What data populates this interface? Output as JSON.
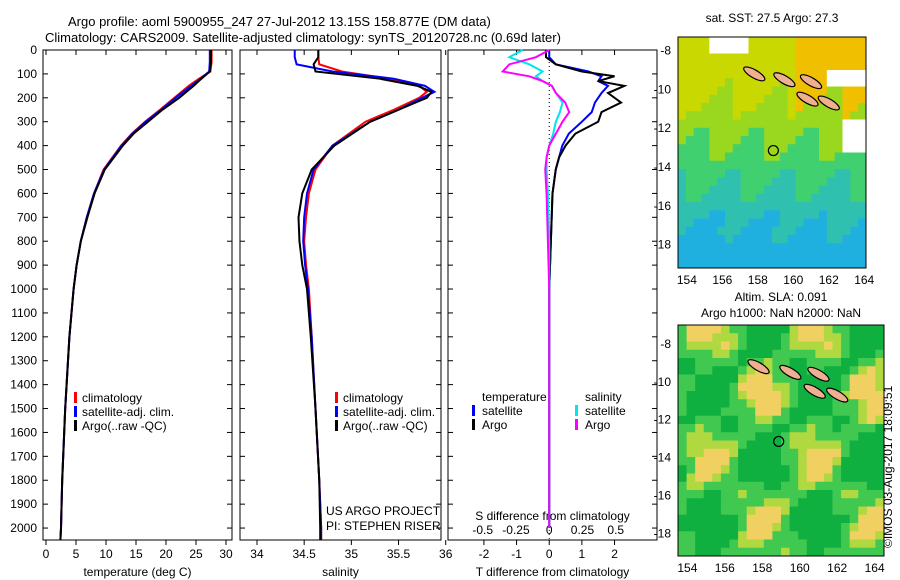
{
  "title_line1": "Argo profile: aoml 5900955_247 27-Jul-2012 13.15S 158.877E (DM data)",
  "title_line2": "Climatology: CARS2009. Satellite-adjusted climatology: synTS_20120728.nc (0.69d later)",
  "credit": "US ARGO PROJECT",
  "pi": "PI: STEPHEN RISER",
  "timestamp": "©IMOS 03-Aug-2017 18:09:51",
  "colors": {
    "climatology": "#ff0000",
    "satellite": "#0000ff",
    "argo": "#000000",
    "sal_satellite": "#00e5ee",
    "sal_argo": "#ff00ff"
  },
  "chart_data": [
    {
      "type": "line",
      "name": "temperature",
      "xlabel": "temperature (deg C)",
      "xlim": [
        -0.5,
        31
      ],
      "ylim": [
        0,
        2050
      ],
      "yreverse": true,
      "xticks": [
        0,
        5,
        10,
        15,
        20,
        25,
        30
      ],
      "yticks": [
        0,
        100,
        200,
        300,
        400,
        500,
        600,
        700,
        800,
        900,
        1000,
        1100,
        1200,
        1300,
        1400,
        1500,
        1600,
        1700,
        1800,
        1900,
        2000
      ],
      "legend": [
        "climatology",
        "satellite-adj. clim.",
        "Argo(..raw -QC)"
      ],
      "depth": [
        0,
        50,
        90,
        120,
        150,
        200,
        250,
        300,
        350,
        400,
        500,
        600,
        700,
        800,
        900,
        1000,
        1200,
        1500,
        1800,
        2000,
        2050
      ],
      "series": [
        {
          "name": "climatology",
          "values": [
            27.6,
            27.6,
            27.4,
            25.5,
            23.8,
            21.4,
            19,
            16.5,
            14.3,
            12.5,
            9.6,
            8,
            6.8,
            5.8,
            5.1,
            4.6,
            3.9,
            3.2,
            2.7,
            2.5,
            2.4
          ]
        },
        {
          "name": "satellite-adj. clim.",
          "values": [
            27.3,
            27.3,
            27.2,
            25.8,
            24.2,
            21.6,
            19.2,
            16.6,
            14.4,
            12.6,
            9.7,
            8,
            6.8,
            5.8,
            5.1,
            4.6,
            3.9,
            3.2,
            2.7,
            2.5,
            2.4
          ]
        },
        {
          "name": "Argo(..raw -QC)",
          "values": [
            27.5,
            27.5,
            27.3,
            25.9,
            24.6,
            22.2,
            19.4,
            17,
            14.6,
            12.8,
            9.8,
            8.1,
            6.9,
            5.8,
            5.1,
            4.6,
            3.9,
            3.2,
            2.7,
            2.5,
            2.4
          ]
        }
      ]
    },
    {
      "type": "line",
      "name": "salinity",
      "xlabel": "salinity",
      "xlim": [
        33.82,
        35.95
      ],
      "ylim": [
        0,
        2050
      ],
      "yreverse": true,
      "xticks": [
        34,
        34.5,
        35,
        35.5,
        36
      ],
      "legend": [
        "climatology",
        "satellite-adj. clim.",
        "Argo(..raw -QC)"
      ],
      "depth": [
        0,
        30,
        60,
        90,
        120,
        150,
        175,
        200,
        250,
        300,
        400,
        500,
        600,
        700,
        800,
        900,
        1000,
        1200,
        1500,
        1800,
        2000,
        2050
      ],
      "series": [
        {
          "name": "climatology",
          "values": [
            34.65,
            34.65,
            34.66,
            34.9,
            35.4,
            35.72,
            35.8,
            35.72,
            35.45,
            35.15,
            34.8,
            34.62,
            34.55,
            34.52,
            34.5,
            34.52,
            34.55,
            34.58,
            34.62,
            34.66,
            34.68,
            34.68
          ]
        },
        {
          "name": "satellite-adj. clim.",
          "values": [
            34.4,
            34.4,
            34.42,
            34.8,
            35.45,
            35.78,
            35.88,
            35.75,
            35.5,
            35.2,
            34.8,
            34.6,
            34.53,
            34.5,
            34.49,
            34.51,
            34.54,
            34.58,
            34.62,
            34.66,
            34.68,
            34.68
          ]
        },
        {
          "name": "Argo(..raw -QC)",
          "values": [
            34.65,
            34.65,
            34.6,
            34.62,
            35.3,
            35.7,
            35.85,
            35.8,
            35.5,
            35.2,
            34.82,
            34.58,
            34.48,
            34.44,
            34.45,
            34.48,
            34.53,
            34.57,
            34.62,
            34.66,
            34.67,
            34.67
          ]
        }
      ]
    },
    {
      "type": "line",
      "name": "differences",
      "xlabel": "T difference from climatology",
      "x2label": "S difference from climatology",
      "xlim": [
        -3.1,
        3.3
      ],
      "xticks": [
        -2,
        -1,
        0,
        1,
        2
      ],
      "x2ticks": [
        -0.5,
        -0.25,
        0,
        0.25,
        0.5
      ],
      "x2tick_labels": [
        "-0.5",
        "-0.25",
        "0",
        "0.25",
        "0.5"
      ],
      "ylim": [
        0,
        2050
      ],
      "legend_temperature": {
        "title": "temperature",
        "items": [
          "satellite",
          "Argo"
        ]
      },
      "legend_salinity": {
        "title": "salinity",
        "items": [
          "satellite",
          "Argo"
        ]
      },
      "depth": [
        0,
        30,
        60,
        90,
        110,
        130,
        150,
        180,
        220,
        260,
        300,
        350,
        400,
        450,
        500,
        600,
        800,
        1000,
        1500,
        2000
      ],
      "series": [
        {
          "name": "T satellite",
          "axis": "T",
          "values": [
            0,
            0,
            0.2,
            1.2,
            1.6,
            1.5,
            1.8,
            1.6,
            1.4,
            1.3,
            1.0,
            0.6,
            0.4,
            0.3,
            0.2,
            0.1,
            0.05,
            0,
            0,
            0
          ]
        },
        {
          "name": "T Argo",
          "axis": "T",
          "values": [
            -0.1,
            -0.1,
            0.2,
            1.0,
            2.0,
            1.5,
            2.3,
            1.8,
            2.2,
            1.6,
            1.5,
            0.8,
            0.5,
            0.3,
            0.2,
            0.1,
            0.05,
            0,
            0,
            0
          ]
        },
        {
          "name": "S satellite",
          "axis": "S",
          "values": [
            -0.2,
            -0.3,
            -0.15,
            -0.05,
            -0.1,
            -0.05,
            0.02,
            0.05,
            0.1,
            0.08,
            0.05,
            0.03,
            0,
            -0.02,
            -0.02,
            -0.01,
            0,
            0,
            0,
            0
          ]
        },
        {
          "name": "S Argo",
          "axis": "S",
          "values": [
            0,
            -0.1,
            -0.3,
            -0.35,
            -0.15,
            -0.05,
            0.02,
            0.05,
            0.12,
            0.15,
            0.1,
            0.05,
            0,
            -0.02,
            -0.03,
            -0.02,
            -0.01,
            0,
            0,
            0
          ]
        }
      ]
    },
    {
      "type": "heatmap",
      "name": "sst-map",
      "title": "sat. SST: 27.5 Argo: 27.3",
      "xticks": [
        154,
        156,
        158,
        160,
        162,
        164
      ],
      "yticks": [
        -8,
        -10,
        -12,
        -14,
        -16,
        -18
      ],
      "xlim": [
        153.5,
        164.1
      ],
      "ylim": [
        -19.2,
        -7.3
      ],
      "argo_position": [
        158.877,
        -13.15
      ]
    },
    {
      "type": "heatmap",
      "name": "sla-map",
      "title": "Altim. SLA: 0.091",
      "subtitle": "Argo h1000: NaN h2000: NaN",
      "xticks": [
        154,
        156,
        158,
        160,
        162,
        164
      ],
      "yticks": [
        -8,
        -10,
        -12,
        -14,
        -16,
        -18
      ],
      "xlim": [
        153.5,
        164.5
      ],
      "ylim": [
        -19.2,
        -7.0
      ],
      "argo_position": [
        158.877,
        -13.15
      ]
    }
  ]
}
